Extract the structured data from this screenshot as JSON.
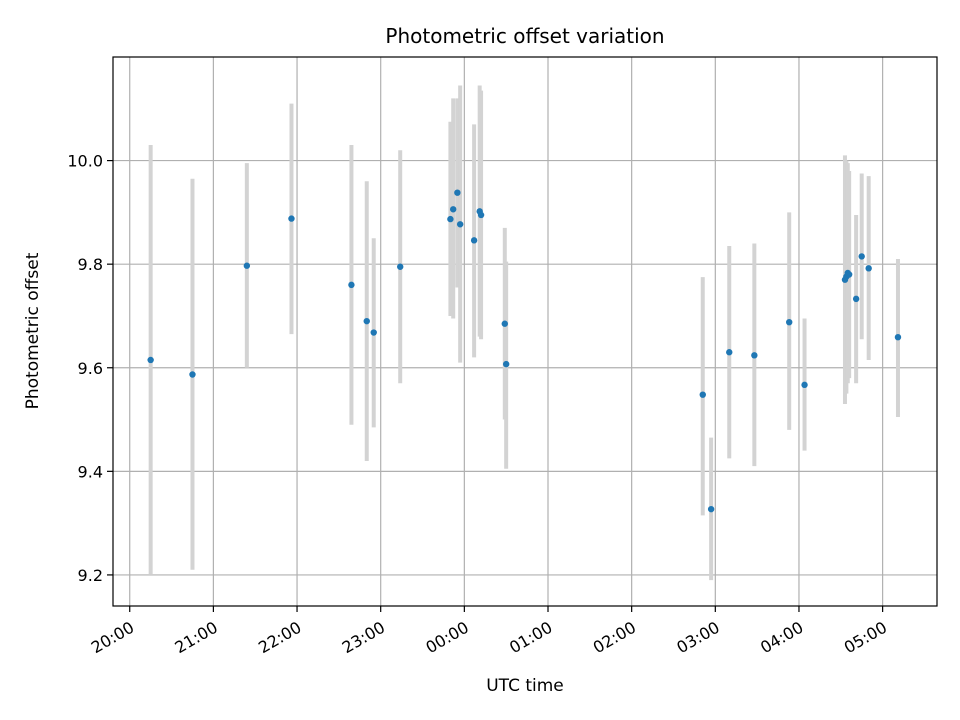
{
  "chart_data": {
    "type": "scatter",
    "title": "Photometric offset variation",
    "xlabel": "UTC time",
    "ylabel": "Photometric offset",
    "x_tick_labels": [
      "20:00",
      "21:00",
      "22:00",
      "23:00",
      "00:00",
      "01:00",
      "02:00",
      "03:00",
      "04:00",
      "05:00"
    ],
    "y_ticks": [
      9.2,
      9.4,
      9.6,
      9.8,
      10.0
    ],
    "y_tick_labels": [
      "9.2",
      "9.4",
      "9.6",
      "9.8",
      "10.0"
    ],
    "ylim": [
      9.14,
      10.2
    ],
    "xlim_hours": [
      19.8,
      29.65
    ],
    "grid": true,
    "colors": {
      "point": "#1f77b4",
      "errorbar": "#d3d3d3",
      "grid": "#b0b0b0"
    },
    "points": [
      {
        "x": "20:15",
        "y": 9.615,
        "ylow": 9.2,
        "yhigh": 10.03
      },
      {
        "x": "20:45",
        "y": 9.587,
        "ylow": 9.21,
        "yhigh": 9.965
      },
      {
        "x": "21:24",
        "y": 9.797,
        "ylow": 9.6,
        "yhigh": 9.995
      },
      {
        "x": "21:56",
        "y": 9.888,
        "ylow": 9.665,
        "yhigh": 10.11
      },
      {
        "x": "22:39",
        "y": 9.76,
        "ylow": 9.49,
        "yhigh": 10.03
      },
      {
        "x": "22:50",
        "y": 9.69,
        "ylow": 9.42,
        "yhigh": 9.96
      },
      {
        "x": "22:55",
        "y": 9.668,
        "ylow": 9.485,
        "yhigh": 9.85
      },
      {
        "x": "23:14",
        "y": 9.795,
        "ylow": 9.57,
        "yhigh": 10.02
      },
      {
        "x": "23:50",
        "y": 9.887,
        "ylow": 9.7,
        "yhigh": 10.075
      },
      {
        "x": "23:52",
        "y": 9.906,
        "ylow": 9.695,
        "yhigh": 10.12
      },
      {
        "x": "23:55",
        "y": 9.938,
        "ylow": 9.755,
        "yhigh": 10.12
      },
      {
        "x": "23:57",
        "y": 9.877,
        "ylow": 9.61,
        "yhigh": 10.145
      },
      {
        "x": "00:07",
        "y": 9.846,
        "ylow": 9.62,
        "yhigh": 10.07
      },
      {
        "x": "00:11",
        "y": 9.902,
        "ylow": 9.66,
        "yhigh": 10.145
      },
      {
        "x": "00:12",
        "y": 9.895,
        "ylow": 9.655,
        "yhigh": 10.135
      },
      {
        "x": "00:29",
        "y": 9.685,
        "ylow": 9.5,
        "yhigh": 9.87
      },
      {
        "x": "00:30",
        "y": 9.607,
        "ylow": 9.405,
        "yhigh": 9.805
      },
      {
        "x": "02:51",
        "y": 9.548,
        "ylow": 9.315,
        "yhigh": 9.775
      },
      {
        "x": "02:57",
        "y": 9.327,
        "ylow": 9.19,
        "yhigh": 9.465
      },
      {
        "x": "03:10",
        "y": 9.63,
        "ylow": 9.425,
        "yhigh": 9.835
      },
      {
        "x": "03:28",
        "y": 9.624,
        "ylow": 9.41,
        "yhigh": 9.84
      },
      {
        "x": "03:53",
        "y": 9.688,
        "ylow": 9.48,
        "yhigh": 9.9
      },
      {
        "x": "04:04",
        "y": 9.567,
        "ylow": 9.44,
        "yhigh": 9.695
      },
      {
        "x": "04:33",
        "y": 9.77,
        "ylow": 9.53,
        "yhigh": 10.01
      },
      {
        "x": "04:34",
        "y": 9.776,
        "ylow": 9.55,
        "yhigh": 10.0
      },
      {
        "x": "04:35",
        "y": 9.783,
        "ylow": 9.57,
        "yhigh": 9.995
      },
      {
        "x": "04:36",
        "y": 9.78,
        "ylow": 9.58,
        "yhigh": 9.98
      },
      {
        "x": "04:41",
        "y": 9.733,
        "ylow": 9.57,
        "yhigh": 9.895
      },
      {
        "x": "04:45",
        "y": 9.815,
        "ylow": 9.655,
        "yhigh": 9.975
      },
      {
        "x": "04:50",
        "y": 9.792,
        "ylow": 9.615,
        "yhigh": 9.97
      },
      {
        "x": "05:11",
        "y": 9.659,
        "ylow": 9.505,
        "yhigh": 9.81
      }
    ]
  }
}
